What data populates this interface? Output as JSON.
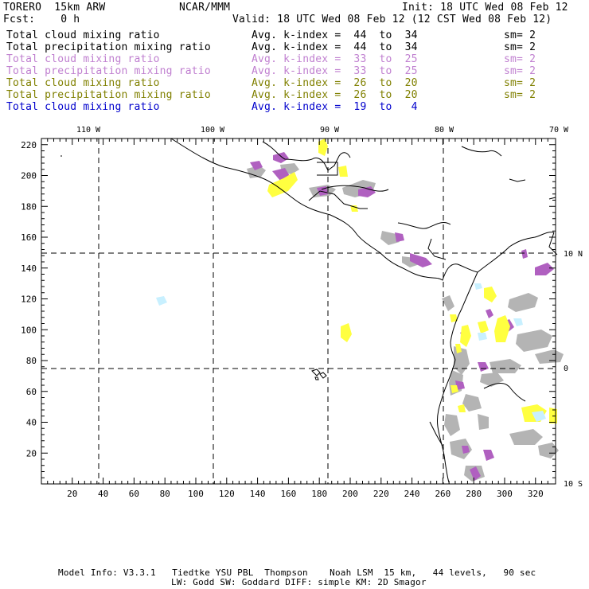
{
  "header": {
    "model": "TORERO  15km ARW",
    "org": "NCAR/MMM",
    "init": "Init: 18 UTC Wed 08 Feb 12",
    "fcst": "Fcst:    0 h",
    "valid": "Valid: 18 UTC Wed 08 Feb 12 (12 CST Wed 08 Feb 12)"
  },
  "legend": [
    {
      "field": "Total cloud mixing ratio",
      "kindex": "Avg. k-index =  44  to  34",
      "sm": "sm= 2",
      "color": "#000000"
    },
    {
      "field": "Total precipitation mixing ratio",
      "kindex": "Avg. k-index =  44  to  34",
      "sm": "sm= 2",
      "color": "#000000"
    },
    {
      "field": "Total cloud mixing ratio",
      "kindex": "Avg. k-index =  33  to  25",
      "sm": "sm= 2",
      "color": "#c080d0"
    },
    {
      "field": "Total precipitation mixing ratio",
      "kindex": "Avg. k-index =  33  to  25",
      "sm": "sm= 2",
      "color": "#c080d0"
    },
    {
      "field": "Total cloud mixing ratio",
      "kindex": "Avg. k-index =  26  to  20",
      "sm": "sm= 2",
      "color": "#808000"
    },
    {
      "field": "Total precipitation mixing ratio",
      "kindex": "Avg. k-index =  26  to  20",
      "sm": "sm= 2",
      "color": "#808000"
    },
    {
      "field": "Total cloud mixing ratio",
      "kindex": "Avg. k-index =  19  to   4",
      "sm": "",
      "color": "#0000cc"
    }
  ],
  "map": {
    "lon_labels": [
      "110 W",
      "100 W",
      "90 W",
      "80 W",
      "70 W"
    ],
    "lat_labels": [
      "10 N",
      "0",
      "10 S"
    ],
    "x_ticks": [
      "20",
      "40",
      "60",
      "80",
      "100",
      "120",
      "140",
      "160",
      "180",
      "200",
      "220",
      "240",
      "260",
      "280",
      "300",
      "320"
    ],
    "y_ticks": [
      "20",
      "40",
      "60",
      "80",
      "100",
      "120",
      "140",
      "160",
      "180",
      "200",
      "220"
    ],
    "colors": {
      "gray": "#b4b4b4",
      "purple": "#b060c0",
      "yellow": "#ffff40",
      "cyan": "#c8f0ff"
    }
  },
  "footer": {
    "line1": "Model Info: V3.3.1   Tiedtke YSU PBL  Thompson    Noah LSM  15 km,   44 levels,   90 sec",
    "line2": "LW: Godd SW: Goddard DIFF: simple KM: 2D Smagor"
  }
}
